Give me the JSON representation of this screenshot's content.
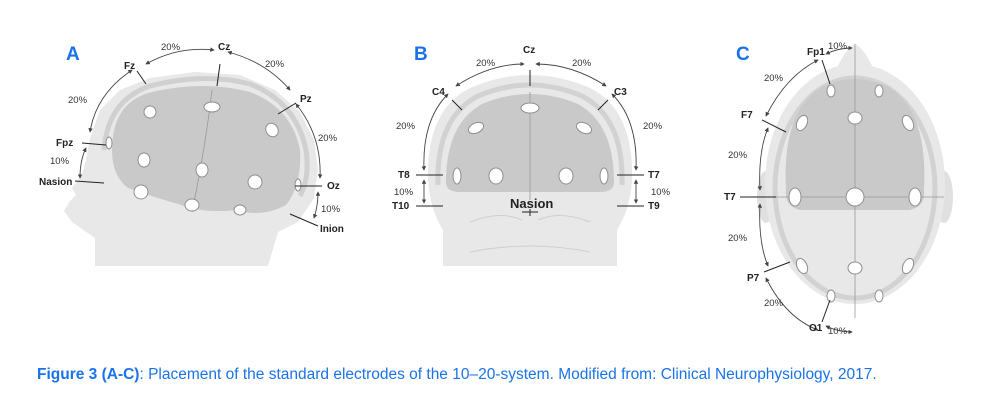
{
  "panels": {
    "a": {
      "letter": "A",
      "labels": {
        "fz": "Fz",
        "cz": "Cz",
        "pz": "Pz",
        "fpz": "Fpz",
        "nasion": "Nasion",
        "oz": "Oz",
        "inion": "Inion"
      },
      "percentages": [
        "20%",
        "20%",
        "20%",
        "20%",
        "10%",
        "10%"
      ]
    },
    "b": {
      "letter": "B",
      "labels": {
        "cz": "Cz",
        "c4": "C4",
        "c3": "C3",
        "t8": "T8",
        "t7": "T7",
        "t10": "T10",
        "t9": "T9",
        "nasion": "Nasion"
      },
      "percentages": [
        "20%",
        "20%",
        "20%",
        "20%",
        "10%",
        "10%"
      ]
    },
    "c": {
      "letter": "C",
      "labels": {
        "fp1": "Fp1",
        "f7": "F7",
        "t7": "T7",
        "p7": "P7",
        "o1": "O1"
      },
      "percentages": [
        "10%",
        "20%",
        "20%",
        "20%",
        "20%",
        "10%"
      ]
    }
  },
  "caption": {
    "bold": "Figure 3 (A-C)",
    "text": ": Placement of the standard electrodes of the 10–20-system. Modified from: Clinical Neurophysiology, 2017."
  },
  "colors": {
    "accent": "#1a73e8",
    "head": "#e6e6e6",
    "brain": "#c8c8c8",
    "electrode": "#ffffff"
  }
}
